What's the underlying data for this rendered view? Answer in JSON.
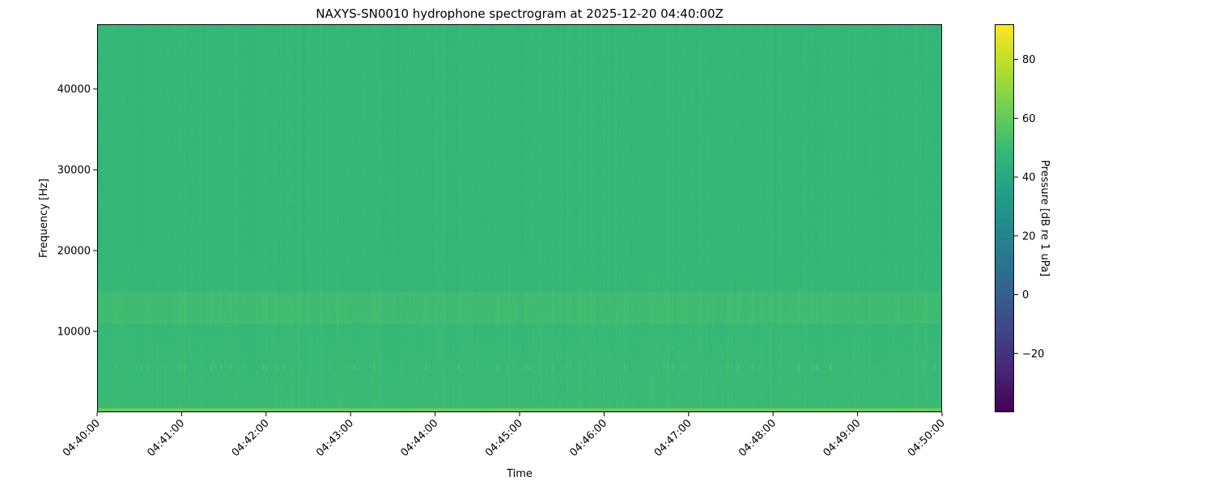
{
  "chart_data": {
    "type": "heatmap",
    "title": "NAXYS-SN0010 hydrophone spectrogram at 2025-12-20 04:40:00Z",
    "xlabel": "Time",
    "ylabel": "Frequency [Hz]",
    "colorbar_label": "Pressure [dB re 1 uPa]",
    "colormap": "viridis",
    "xlim": [
      "04:40:00",
      "04:50:00"
    ],
    "ylim": [
      0,
      48000
    ],
    "clim": [
      -40,
      92
    ],
    "x_ticks": [
      "04:40:00",
      "04:41:00",
      "04:42:00",
      "04:43:00",
      "04:44:00",
      "04:45:00",
      "04:46:00",
      "04:47:00",
      "04:48:00",
      "04:49:00",
      "04:50:00"
    ],
    "y_ticks": [
      10000,
      20000,
      30000,
      40000
    ],
    "y_tick_labels": [
      "10000",
      "20000",
      "30000",
      "40000"
    ],
    "colorbar_ticks": [
      -20,
      0,
      20,
      40,
      60,
      80
    ],
    "colorbar_tick_labels": [
      "−20",
      "0",
      "20",
      "40",
      "60",
      "80"
    ],
    "grid": false,
    "approx_levels_db": {
      "background": 48,
      "band_below_500Hz": 62,
      "band_5500_6000Hz_transients": 58,
      "band_11000_15000Hz": 52
    }
  }
}
